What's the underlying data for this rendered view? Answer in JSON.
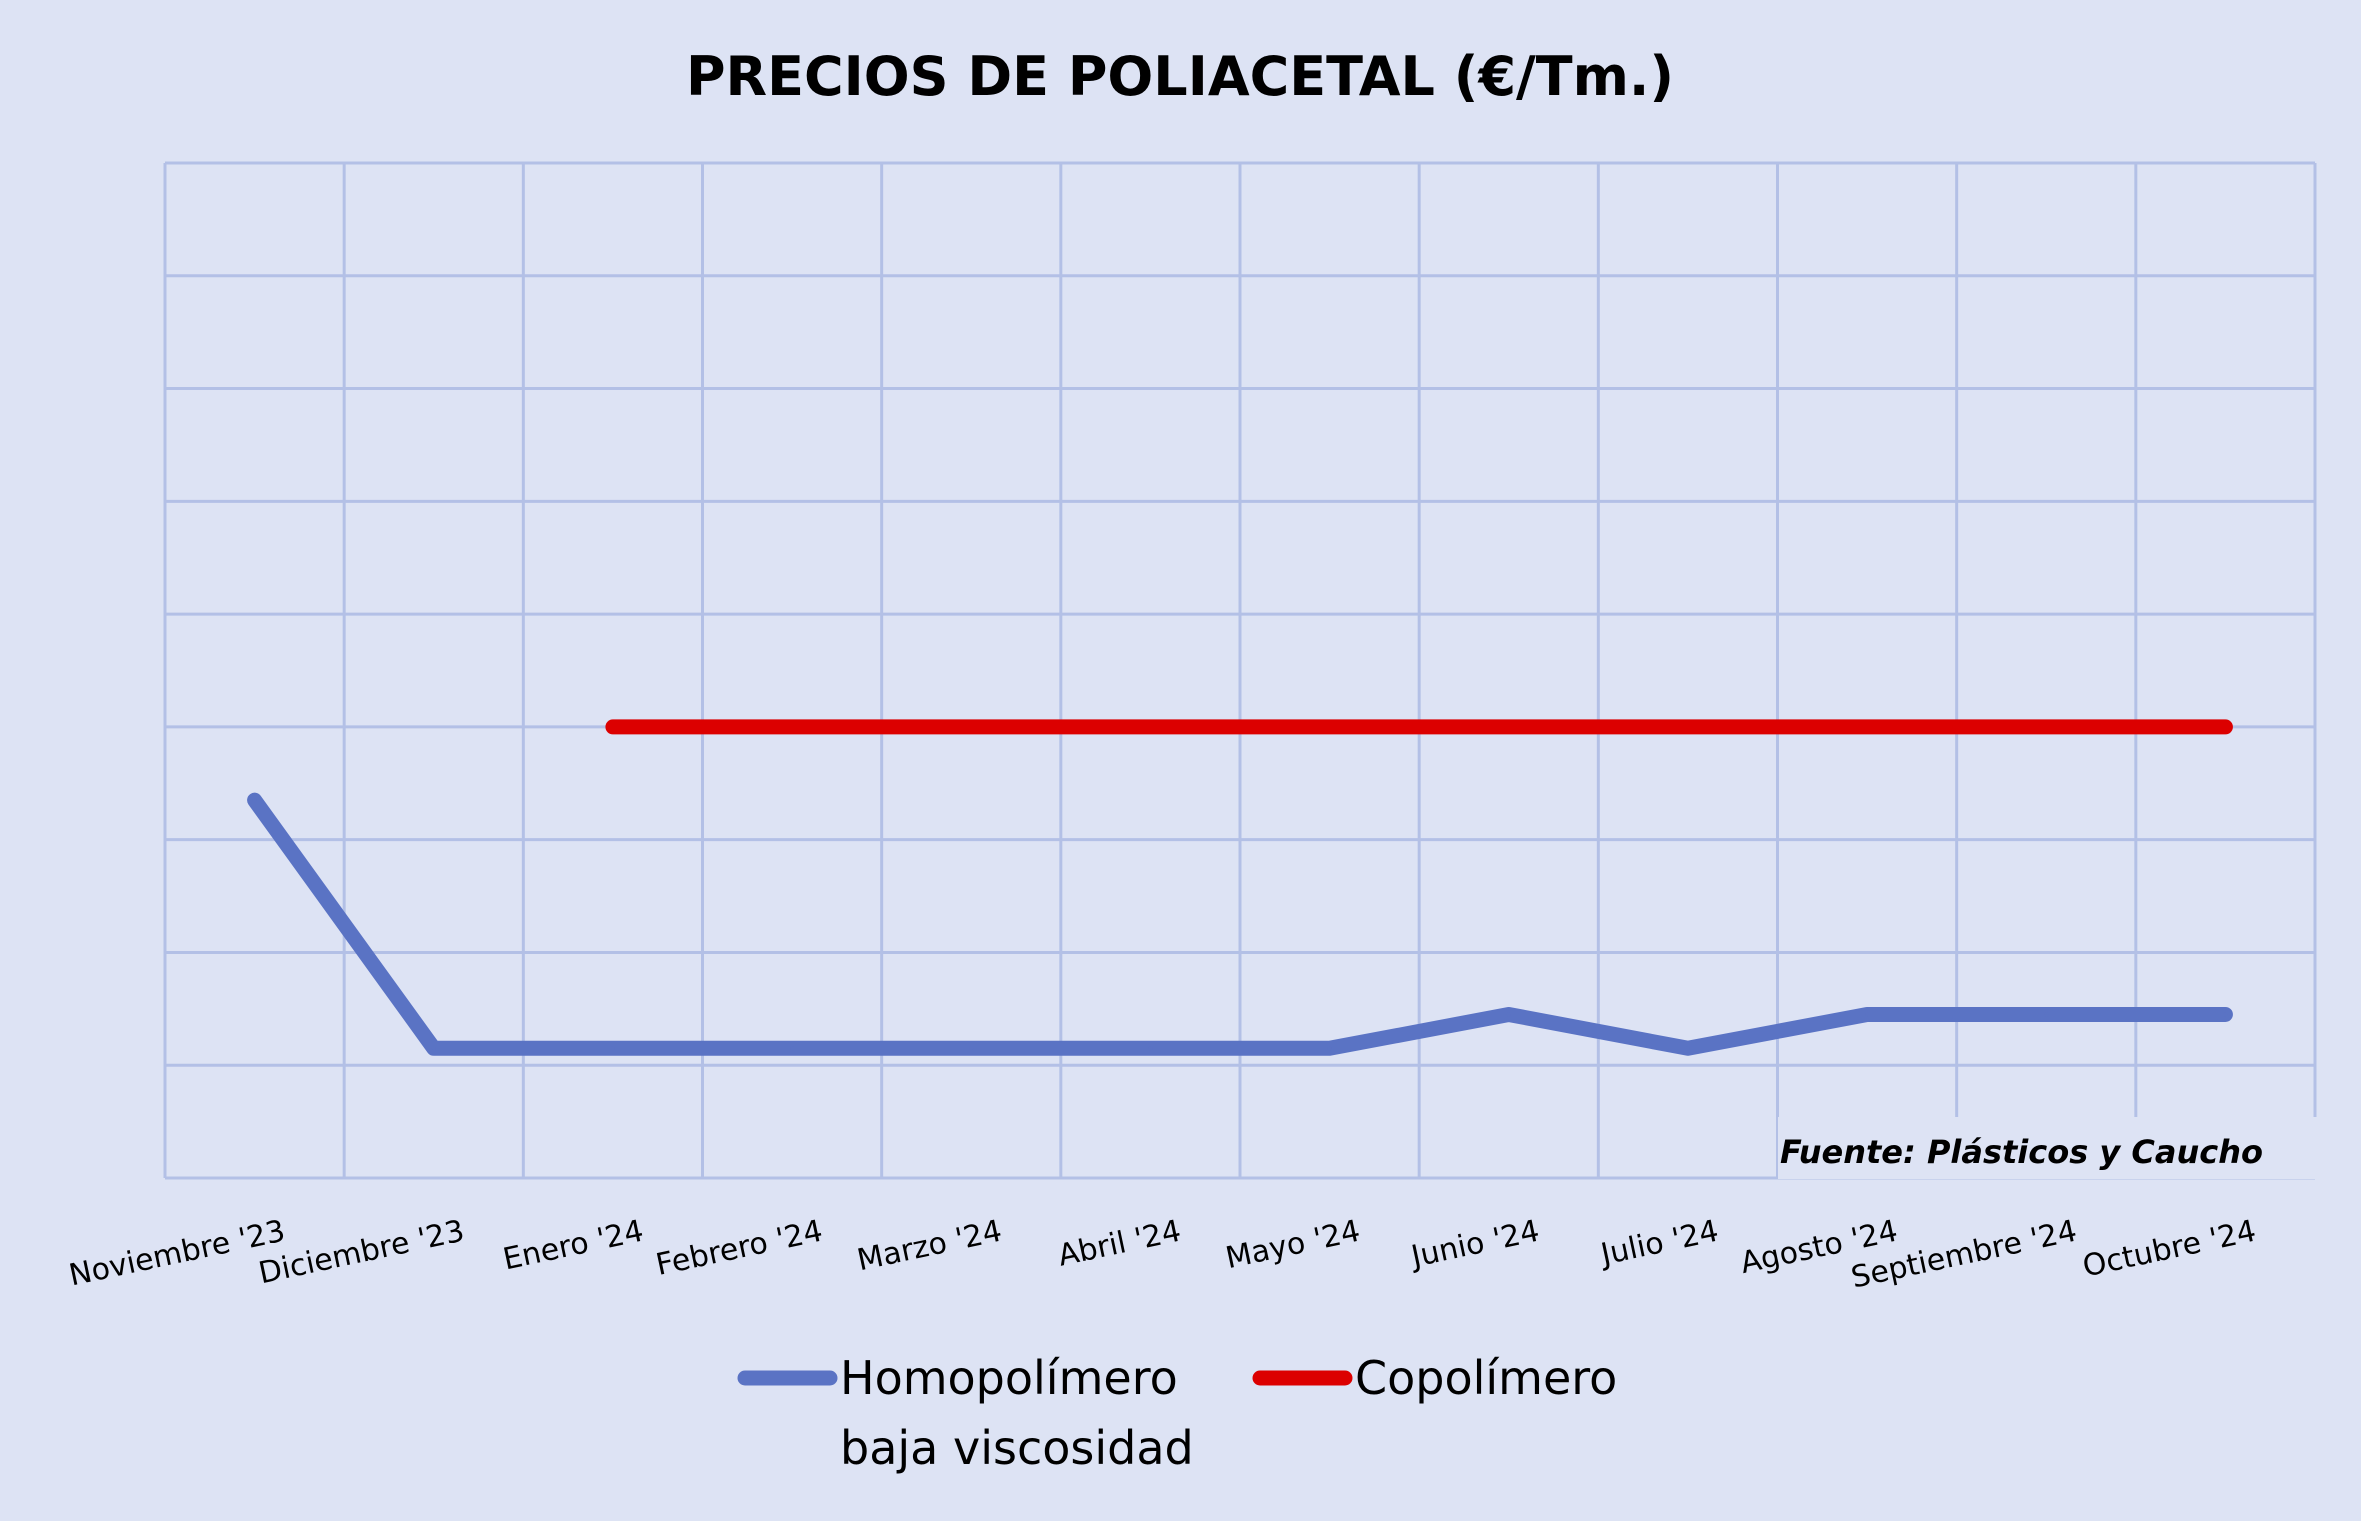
{
  "chart_data": {
    "type": "line",
    "title": "PRECIOS DE POLIACETAL (€/Tm.)",
    "source": "Fuente: Plásticos y Caucho",
    "categories": [
      "Noviembre '23",
      "Diciembre '23",
      "Enero '24",
      "Febrero '24",
      "Marzo '24",
      "Abril '24",
      "Mayo '24",
      "Junio '24",
      "Julio '24",
      "Agosto '24",
      "Septiembre '24",
      "Octubre '24"
    ],
    "series": [
      {
        "name": "Homopolímero baja viscosidad",
        "legend_lines": [
          "Homopolímero",
          "baja viscosidad"
        ],
        "color": "#5a73c4",
        "values": [
          6.35,
          4.15,
          4.15,
          4.15,
          4.15,
          4.15,
          4.15,
          4.45,
          4.15,
          4.45,
          4.45,
          4.45
        ]
      },
      {
        "name": "Copolímero",
        "legend_lines": [
          "Copolímero"
        ],
        "color": "#dc0000",
        "values": [
          null,
          null,
          7.0,
          7.0,
          7.0,
          7.0,
          7.0,
          7.0,
          7.0,
          7.0,
          7.0,
          7.0
        ]
      }
    ],
    "ylim": [
      3,
      12
    ],
    "grid": true,
    "legend_position": "bottom",
    "xlabel": "",
    "ylabel": ""
  }
}
